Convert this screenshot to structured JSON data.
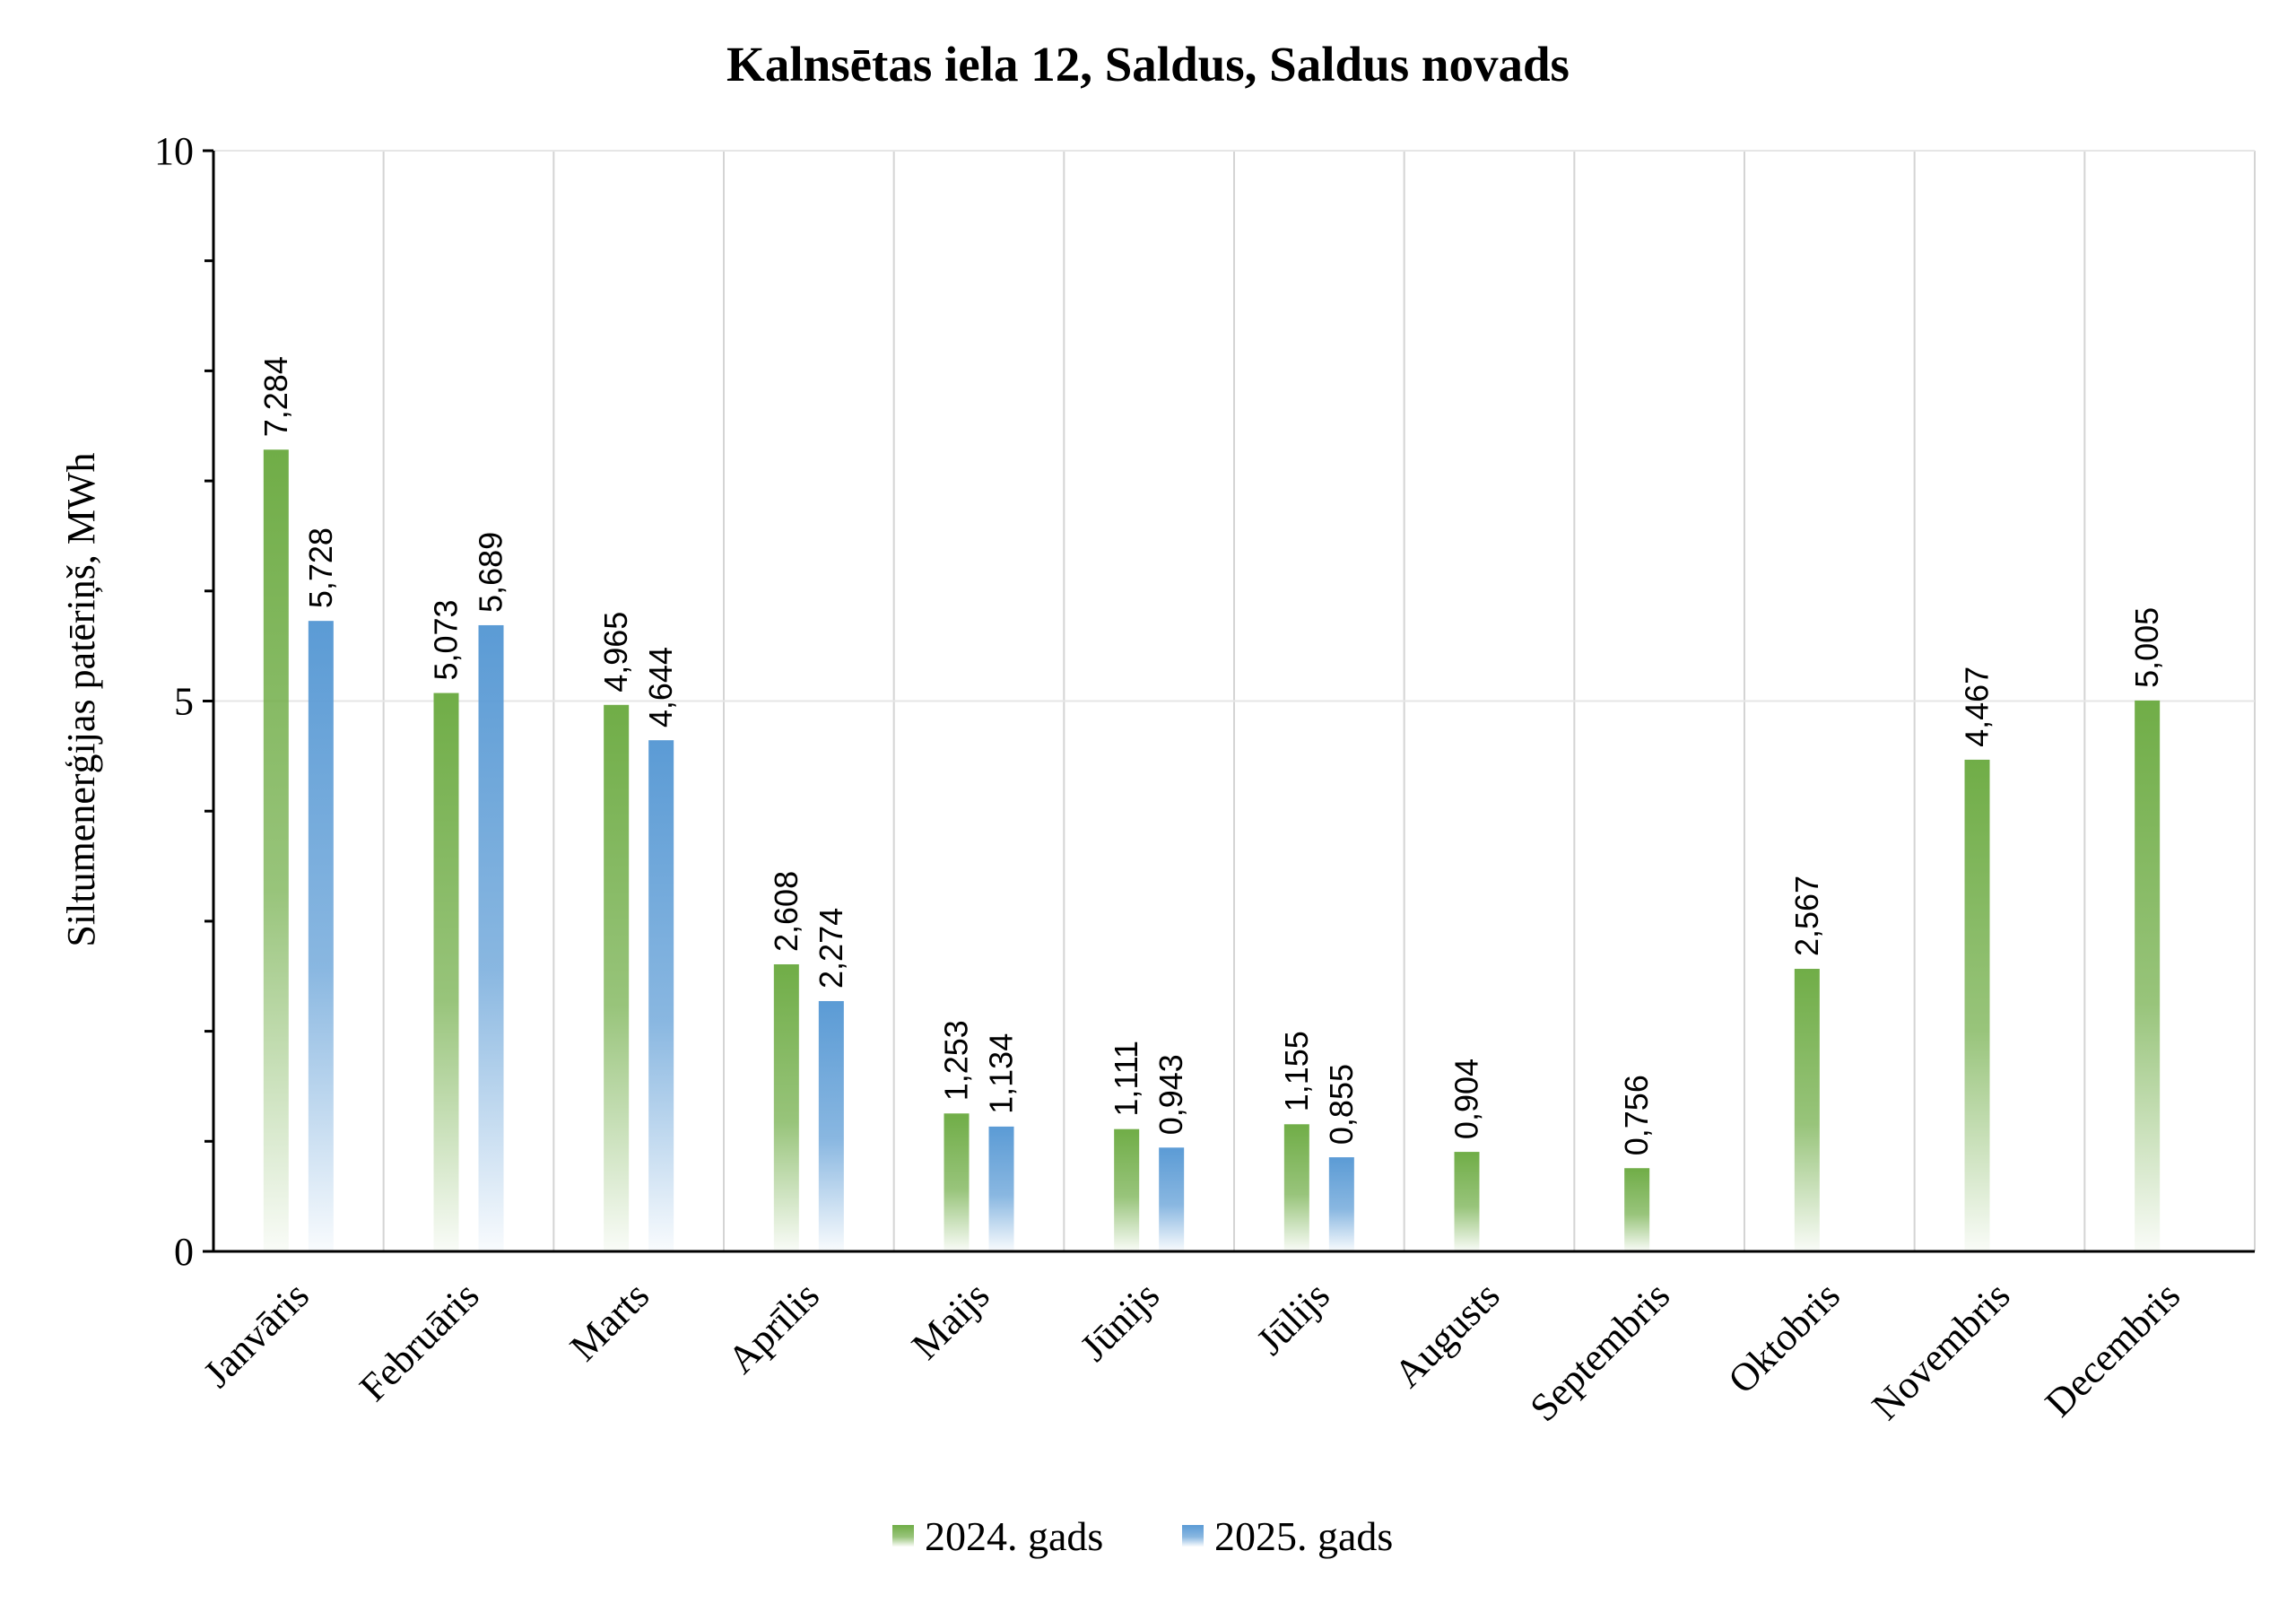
{
  "chart_data": {
    "type": "bar",
    "title": "Kalnsētas iela 12, Saldus, Saldus novads",
    "xlabel": "",
    "ylabel": "Siltumenerģijas patēriņš, MWh",
    "ylim": [
      0,
      10
    ],
    "yticks": [
      0,
      5,
      10
    ],
    "grid": true,
    "legend_position": "bottom",
    "categories": [
      "Janvāris",
      "Februāris",
      "Marts",
      "Aprīlis",
      "Maijs",
      "Jūnijs",
      "Jūlijs",
      "Augusts",
      "Septembris",
      "Oktobris",
      "Novembris",
      "Decembris"
    ],
    "series": [
      {
        "name": "2024. gads",
        "color": "#70ad47",
        "values": [
          7.284,
          5.073,
          4.965,
          2.608,
          1.253,
          1.111,
          1.155,
          0.904,
          0.756,
          2.567,
          4.467,
          5.005
        ],
        "labels": [
          "7,284",
          "5,073",
          "4,965",
          "2,608",
          "1,253",
          "1,111",
          "1,155",
          "0,904",
          "0,756",
          "2,567",
          "4,467",
          "5,005"
        ]
      },
      {
        "name": "2025. gads",
        "color": "#5b9bd5",
        "values": [
          5.728,
          5.689,
          4.644,
          2.274,
          1.134,
          0.943,
          0.855,
          null,
          null,
          null,
          null,
          null
        ],
        "labels": [
          "5,728",
          "5,689",
          "4,644",
          "2,274",
          "1,134",
          "0,943",
          "0,855",
          null,
          null,
          null,
          null,
          null
        ]
      }
    ]
  }
}
